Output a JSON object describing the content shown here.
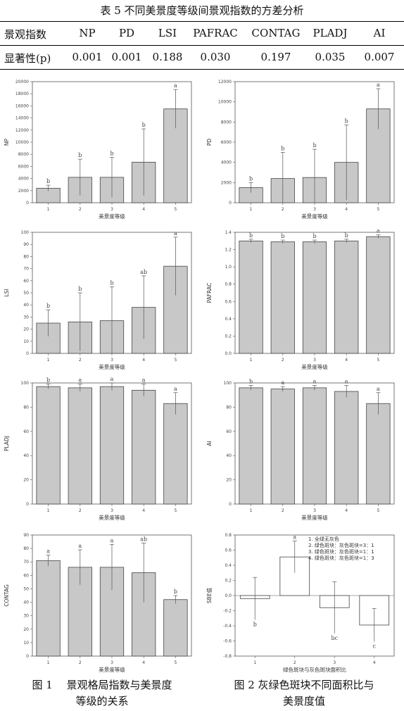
{
  "table": {
    "caption": "表 5    不同美景度等级间景观指数的方差分析",
    "header": [
      "景观指数",
      "NP",
      "PD",
      "LSI",
      "PAFRAC",
      "CONTAG",
      "PLADJ",
      "AI"
    ],
    "row": [
      "显著性(p)",
      "0.001",
      "0.001",
      "0.188",
      "0.030",
      "0.197",
      "0.035",
      "0.007"
    ]
  },
  "chart_data": [
    {
      "type": "bar",
      "ylabel": "NP",
      "xlabel": "美景度等级",
      "categories": [
        "1",
        "2",
        "3",
        "4",
        "5"
      ],
      "values": [
        2400,
        4200,
        4200,
        6700,
        15500
      ],
      "err": [
        500,
        3000,
        3300,
        5500,
        3200
      ],
      "letters": [
        "b",
        "b",
        "b",
        "b",
        "a"
      ],
      "ylim": [
        0,
        20000
      ],
      "yticks": [
        "0",
        "2000",
        "4000",
        "6000",
        "8000",
        "10000",
        "12000",
        "14000",
        "16000",
        "18000",
        "20000"
      ]
    },
    {
      "type": "bar",
      "ylabel": "PD",
      "xlabel": "美景度等级",
      "categories": [
        "1",
        "2",
        "3",
        "4",
        "5"
      ],
      "values": [
        1500,
        2400,
        2500,
        4000,
        9300
      ],
      "err": [
        500,
        2600,
        2800,
        3700,
        2000
      ],
      "letters": [
        "b",
        "b",
        "b",
        "b",
        "a"
      ],
      "ylim": [
        0,
        12000
      ],
      "yticks": [
        "0",
        "2000",
        "4000",
        "6000",
        "8000",
        "10000",
        "12000"
      ]
    },
    {
      "type": "bar",
      "ylabel": "LSI",
      "xlabel": "美景度等级",
      "categories": [
        "1",
        "2",
        "3",
        "4",
        "5"
      ],
      "values": [
        25,
        26,
        27,
        38,
        72
      ],
      "err": [
        11,
        24,
        28,
        26,
        24
      ],
      "letters": [
        "b",
        "b",
        "b",
        "ab",
        "a"
      ],
      "ylim": [
        0,
        100
      ],
      "yticks": [
        "0",
        "10",
        "20",
        "30",
        "40",
        "50",
        "60",
        "70",
        "80",
        "90",
        "100"
      ]
    },
    {
      "type": "bar",
      "ylabel": "PAFRAC",
      "xlabel": "美景度等级",
      "categories": [
        "1",
        "2",
        "3",
        "4",
        "5"
      ],
      "values": [
        1.3,
        1.29,
        1.29,
        1.3,
        1.35
      ],
      "err": [
        0.02,
        0.02,
        0.02,
        0.02,
        0.02
      ],
      "letters": [
        "b",
        "b",
        "b",
        "b",
        "a"
      ],
      "ylim": [
        0,
        1.4
      ],
      "yticks": [
        "0.0",
        "0.2",
        "0.4",
        "0.6",
        "0.8",
        "1.0",
        "1.2",
        "1.4"
      ]
    },
    {
      "type": "bar",
      "ylabel": "PLADJ",
      "xlabel": "美景度等级",
      "categories": [
        "1",
        "2",
        "3",
        "4",
        "5"
      ],
      "values": [
        97,
        96,
        97,
        94,
        83
      ],
      "err": [
        2,
        3,
        3,
        5,
        9
      ],
      "letters": [
        "b",
        "a",
        "a",
        "a",
        "a"
      ],
      "ylim": [
        0,
        100
      ],
      "yticks": [
        "0",
        "20",
        "40",
        "60",
        "80",
        "100"
      ]
    },
    {
      "type": "bar",
      "ylabel": "AI",
      "xlabel": "美景度等级",
      "categories": [
        "1",
        "2",
        "3",
        "4",
        "5"
      ],
      "values": [
        96,
        95,
        96,
        93,
        83
      ],
      "err": [
        2,
        2,
        2,
        5,
        9
      ],
      "letters": [
        "b",
        "a",
        "a",
        "a",
        "a"
      ],
      "ylim": [
        0,
        100
      ],
      "yticks": [
        "0",
        "20",
        "40",
        "60",
        "80",
        "100"
      ]
    },
    {
      "type": "bar",
      "ylabel": "CONTAG",
      "xlabel": "美景度等级",
      "categories": [
        "1",
        "2",
        "3",
        "4",
        "5"
      ],
      "values": [
        71,
        66,
        66,
        62,
        42
      ],
      "err": [
        4,
        13,
        17,
        22,
        3
      ],
      "letters": [
        "a",
        "a",
        "a",
        "ab",
        "b"
      ],
      "ylim": [
        0,
        90
      ],
      "yticks": [
        "0",
        "10",
        "20",
        "30",
        "40",
        "50",
        "60",
        "70",
        "80",
        "90"
      ]
    },
    {
      "type": "bar",
      "ylabel": "SBE值",
      "xlabel": "绿色斑块与灰色斑块面积比",
      "categories": [
        "1",
        "2",
        "3",
        "4"
      ],
      "values": [
        -0.04,
        0.51,
        -0.16,
        -0.39
      ],
      "err": [
        0.28,
        0.21,
        0.34,
        0.22
      ],
      "letters": [
        "b",
        "a",
        "bc",
        "c"
      ],
      "ylim": [
        -0.8,
        0.8
      ],
      "yticks": [
        "-0.8",
        "-0.6",
        "-0.4",
        "-0.2",
        "0.0",
        "0.2",
        "0.4",
        "0.6",
        "0.8"
      ],
      "legend": [
        "1. 全绿无灰色",
        "2. 绿色斑块：灰色斑块=3：1",
        "3. 绿色斑块：灰色斑块=1：1",
        "4. 绿色斑块：灰色斑块=1：3"
      ]
    }
  ],
  "captions": {
    "fig1": [
      "图 1　 景观格局指数与美景度",
      "等级的关系"
    ],
    "fig2": [
      "图 2  灰绿色斑块不同面积比与",
      "美景度值"
    ]
  }
}
